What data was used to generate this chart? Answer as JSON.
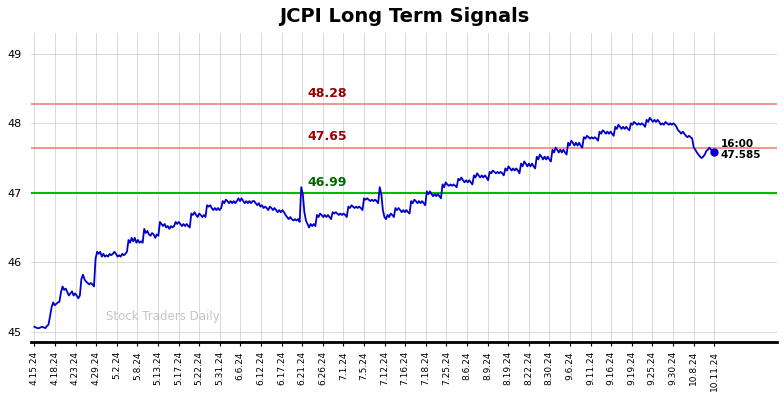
{
  "title": "JCPI Long Term Signals",
  "title_fontsize": 14,
  "background_color": "#ffffff",
  "grid_color": "#cccccc",
  "line_color": "#0000cc",
  "line_width": 1.3,
  "watermark": "Stock Traders Daily",
  "ylim": [
    44.85,
    49.3
  ],
  "yticks": [
    45,
    46,
    47,
    48,
    49
  ],
  "hlines": [
    {
      "y": 48.28,
      "color": "#f08080",
      "label": "48.28",
      "label_color": "#990000",
      "lw": 1.2
    },
    {
      "y": 47.65,
      "color": "#f08080",
      "label": "47.65",
      "label_color": "#990000",
      "lw": 1.2
    },
    {
      "y": 47.0,
      "color": "#00bb00",
      "label": "46.99",
      "label_color": "#006600",
      "lw": 1.5
    }
  ],
  "end_label": "16:00",
  "end_value": "47.585",
  "end_dot_color": "#0000cc",
  "xtick_labels": [
    "4.15.24",
    "4.18.24",
    "4.23.24",
    "4.29.24",
    "5.2.24",
    "5.8.24",
    "5.13.24",
    "5.17.24",
    "5.22.24",
    "5.31.24",
    "6.6.24",
    "6.12.24",
    "6.17.24",
    "6.21.24",
    "6.26.24",
    "7.1.24",
    "7.5.24",
    "7.12.24",
    "7.16.24",
    "7.18.24",
    "7.25.24",
    "8.6.24",
    "8.9.24",
    "8.19.24",
    "8.22.24",
    "8.30.24",
    "9.6.24",
    "9.11.24",
    "9.16.24",
    "9.19.24",
    "9.25.24",
    "9.30.24",
    "10.8.24",
    "10.11.24"
  ],
  "keypoints": [
    [
      0,
      45.07
    ],
    [
      1,
      45.06
    ],
    [
      2,
      45.05
    ],
    [
      3,
      45.05
    ],
    [
      4,
      45.06
    ],
    [
      5,
      45.07
    ],
    [
      6,
      45.06
    ],
    [
      7,
      45.05
    ],
    [
      8,
      45.08
    ],
    [
      9,
      45.1
    ],
    [
      10,
      45.22
    ],
    [
      11,
      45.35
    ],
    [
      12,
      45.42
    ],
    [
      13,
      45.38
    ],
    [
      14,
      45.4
    ],
    [
      15,
      45.42
    ],
    [
      16,
      45.43
    ],
    [
      17,
      45.57
    ],
    [
      18,
      45.65
    ],
    [
      19,
      45.6
    ],
    [
      20,
      45.62
    ],
    [
      21,
      45.57
    ],
    [
      22,
      45.52
    ],
    [
      23,
      45.55
    ],
    [
      24,
      45.58
    ],
    [
      25,
      45.52
    ],
    [
      26,
      45.55
    ],
    [
      27,
      45.52
    ],
    [
      28,
      45.48
    ],
    [
      29,
      45.52
    ],
    [
      30,
      45.76
    ],
    [
      31,
      45.82
    ],
    [
      32,
      45.75
    ],
    [
      33,
      45.72
    ],
    [
      34,
      45.7
    ],
    [
      35,
      45.68
    ],
    [
      36,
      45.7
    ],
    [
      37,
      45.68
    ],
    [
      38,
      45.65
    ],
    [
      39,
      46.05
    ],
    [
      40,
      46.15
    ],
    [
      41,
      46.12
    ],
    [
      42,
      46.15
    ],
    [
      43,
      46.08
    ],
    [
      44,
      46.12
    ],
    [
      45,
      46.08
    ],
    [
      46,
      46.1
    ],
    [
      47,
      46.08
    ],
    [
      48,
      46.12
    ],
    [
      49,
      46.1
    ],
    [
      50,
      46.12
    ],
    [
      51,
      46.15
    ],
    [
      52,
      46.12
    ],
    [
      53,
      46.08
    ],
    [
      54,
      46.1
    ],
    [
      55,
      46.08
    ],
    [
      56,
      46.12
    ],
    [
      57,
      46.1
    ],
    [
      58,
      46.12
    ],
    [
      59,
      46.15
    ],
    [
      60,
      46.32
    ],
    [
      61,
      46.28
    ],
    [
      62,
      46.35
    ],
    [
      63,
      46.3
    ],
    [
      64,
      46.35
    ],
    [
      65,
      46.28
    ],
    [
      66,
      46.32
    ],
    [
      67,
      46.28
    ],
    [
      68,
      46.3
    ],
    [
      69,
      46.28
    ],
    [
      70,
      46.48
    ],
    [
      71,
      46.42
    ],
    [
      72,
      46.45
    ],
    [
      73,
      46.4
    ],
    [
      74,
      46.38
    ],
    [
      75,
      46.42
    ],
    [
      76,
      46.4
    ],
    [
      77,
      46.35
    ],
    [
      78,
      46.4
    ],
    [
      79,
      46.38
    ],
    [
      80,
      46.58
    ],
    [
      81,
      46.55
    ],
    [
      82,
      46.52
    ],
    [
      83,
      46.55
    ],
    [
      84,
      46.5
    ],
    [
      85,
      46.52
    ],
    [
      86,
      46.48
    ],
    [
      87,
      46.52
    ],
    [
      88,
      46.5
    ],
    [
      89,
      46.52
    ],
    [
      90,
      46.58
    ],
    [
      91,
      46.55
    ],
    [
      92,
      46.58
    ],
    [
      93,
      46.55
    ],
    [
      94,
      46.52
    ],
    [
      95,
      46.55
    ],
    [
      96,
      46.52
    ],
    [
      97,
      46.55
    ],
    [
      98,
      46.52
    ],
    [
      99,
      46.5
    ],
    [
      100,
      46.7
    ],
    [
      101,
      46.68
    ],
    [
      102,
      46.72
    ],
    [
      103,
      46.68
    ],
    [
      104,
      46.65
    ],
    [
      105,
      46.7
    ],
    [
      106,
      46.68
    ],
    [
      107,
      46.65
    ],
    [
      108,
      46.68
    ],
    [
      109,
      46.65
    ],
    [
      110,
      46.82
    ],
    [
      111,
      46.8
    ],
    [
      112,
      46.82
    ],
    [
      113,
      46.78
    ],
    [
      114,
      46.75
    ],
    [
      115,
      46.78
    ],
    [
      116,
      46.75
    ],
    [
      117,
      46.78
    ],
    [
      118,
      46.75
    ],
    [
      119,
      46.78
    ],
    [
      120,
      46.88
    ],
    [
      121,
      46.85
    ],
    [
      122,
      46.9
    ],
    [
      123,
      46.88
    ],
    [
      124,
      46.85
    ],
    [
      125,
      46.88
    ],
    [
      126,
      46.85
    ],
    [
      127,
      46.88
    ],
    [
      128,
      46.85
    ],
    [
      129,
      46.88
    ],
    [
      130,
      46.92
    ],
    [
      131,
      46.88
    ],
    [
      132,
      46.92
    ],
    [
      133,
      46.88
    ],
    [
      134,
      46.85
    ],
    [
      135,
      46.88
    ],
    [
      136,
      46.85
    ],
    [
      137,
      46.88
    ],
    [
      138,
      46.85
    ],
    [
      139,
      46.88
    ],
    [
      140,
      46.88
    ],
    [
      141,
      46.85
    ],
    [
      142,
      46.82
    ],
    [
      143,
      46.85
    ],
    [
      144,
      46.8
    ],
    [
      145,
      46.82
    ],
    [
      146,
      46.78
    ],
    [
      147,
      46.8
    ],
    [
      148,
      46.78
    ],
    [
      149,
      46.75
    ],
    [
      150,
      46.8
    ],
    [
      151,
      46.78
    ],
    [
      152,
      46.75
    ],
    [
      153,
      46.78
    ],
    [
      154,
      46.75
    ],
    [
      155,
      46.72
    ],
    [
      156,
      46.75
    ],
    [
      157,
      46.72
    ],
    [
      158,
      46.75
    ],
    [
      159,
      46.72
    ],
    [
      160,
      46.68
    ],
    [
      161,
      46.65
    ],
    [
      162,
      46.62
    ],
    [
      163,
      46.65
    ],
    [
      164,
      46.62
    ],
    [
      165,
      46.6
    ],
    [
      166,
      46.62
    ],
    [
      167,
      46.6
    ],
    [
      168,
      46.62
    ],
    [
      169,
      46.58
    ],
    [
      170,
      47.08
    ],
    [
      171,
      46.98
    ],
    [
      172,
      46.72
    ],
    [
      173,
      46.6
    ],
    [
      174,
      46.55
    ],
    [
      175,
      46.5
    ],
    [
      176,
      46.55
    ],
    [
      177,
      46.52
    ],
    [
      178,
      46.55
    ],
    [
      179,
      46.52
    ],
    [
      180,
      46.68
    ],
    [
      181,
      46.65
    ],
    [
      182,
      46.7
    ],
    [
      183,
      46.68
    ],
    [
      184,
      46.65
    ],
    [
      185,
      46.68
    ],
    [
      186,
      46.65
    ],
    [
      187,
      46.68
    ],
    [
      188,
      46.65
    ],
    [
      189,
      46.62
    ],
    [
      190,
      46.72
    ],
    [
      191,
      46.7
    ],
    [
      192,
      46.72
    ],
    [
      193,
      46.7
    ],
    [
      194,
      46.68
    ],
    [
      195,
      46.7
    ],
    [
      196,
      46.68
    ],
    [
      197,
      46.7
    ],
    [
      198,
      46.68
    ],
    [
      199,
      46.65
    ],
    [
      200,
      46.8
    ],
    [
      201,
      46.78
    ],
    [
      202,
      46.82
    ],
    [
      203,
      46.8
    ],
    [
      204,
      46.78
    ],
    [
      205,
      46.8
    ],
    [
      206,
      46.78
    ],
    [
      207,
      46.8
    ],
    [
      208,
      46.78
    ],
    [
      209,
      46.75
    ],
    [
      210,
      46.92
    ],
    [
      211,
      46.9
    ],
    [
      212,
      46.92
    ],
    [
      213,
      46.9
    ],
    [
      214,
      46.88
    ],
    [
      215,
      46.9
    ],
    [
      216,
      46.88
    ],
    [
      217,
      46.9
    ],
    [
      218,
      46.88
    ],
    [
      219,
      46.85
    ],
    [
      220,
      47.08
    ],
    [
      221,
      46.98
    ],
    [
      222,
      46.75
    ],
    [
      223,
      46.65
    ],
    [
      224,
      46.62
    ],
    [
      225,
      46.68
    ],
    [
      226,
      46.65
    ],
    [
      227,
      46.7
    ],
    [
      228,
      46.68
    ],
    [
      229,
      46.65
    ],
    [
      230,
      46.78
    ],
    [
      231,
      46.75
    ],
    [
      232,
      46.78
    ],
    [
      233,
      46.75
    ],
    [
      234,
      46.72
    ],
    [
      235,
      46.75
    ],
    [
      236,
      46.72
    ],
    [
      237,
      46.75
    ],
    [
      238,
      46.72
    ],
    [
      239,
      46.7
    ],
    [
      240,
      46.88
    ],
    [
      241,
      46.85
    ],
    [
      242,
      46.9
    ],
    [
      243,
      46.88
    ],
    [
      244,
      46.85
    ],
    [
      245,
      46.88
    ],
    [
      246,
      46.85
    ],
    [
      247,
      46.88
    ],
    [
      248,
      46.85
    ],
    [
      249,
      46.82
    ],
    [
      250,
      47.02
    ],
    [
      251,
      46.98
    ],
    [
      252,
      47.02
    ],
    [
      253,
      46.98
    ],
    [
      254,
      46.95
    ],
    [
      255,
      46.98
    ],
    [
      256,
      46.95
    ],
    [
      257,
      46.98
    ],
    [
      258,
      46.95
    ],
    [
      259,
      46.92
    ],
    [
      260,
      47.12
    ],
    [
      261,
      47.08
    ],
    [
      262,
      47.15
    ],
    [
      263,
      47.12
    ],
    [
      264,
      47.1
    ],
    [
      265,
      47.12
    ],
    [
      266,
      47.1
    ],
    [
      267,
      47.12
    ],
    [
      268,
      47.1
    ],
    [
      269,
      47.08
    ],
    [
      270,
      47.2
    ],
    [
      271,
      47.18
    ],
    [
      272,
      47.22
    ],
    [
      273,
      47.18
    ],
    [
      274,
      47.15
    ],
    [
      275,
      47.18
    ],
    [
      276,
      47.15
    ],
    [
      277,
      47.18
    ],
    [
      278,
      47.15
    ],
    [
      279,
      47.12
    ],
    [
      280,
      47.25
    ],
    [
      281,
      47.22
    ],
    [
      282,
      47.28
    ],
    [
      283,
      47.25
    ],
    [
      284,
      47.22
    ],
    [
      285,
      47.25
    ],
    [
      286,
      47.22
    ],
    [
      287,
      47.25
    ],
    [
      288,
      47.22
    ],
    [
      289,
      47.18
    ],
    [
      290,
      47.3
    ],
    [
      291,
      47.28
    ],
    [
      292,
      47.32
    ],
    [
      293,
      47.3
    ],
    [
      294,
      47.28
    ],
    [
      295,
      47.3
    ],
    [
      296,
      47.28
    ],
    [
      297,
      47.3
    ],
    [
      298,
      47.28
    ],
    [
      299,
      47.25
    ],
    [
      300,
      47.35
    ],
    [
      301,
      47.32
    ],
    [
      302,
      47.38
    ],
    [
      303,
      47.35
    ],
    [
      304,
      47.32
    ],
    [
      305,
      47.35
    ],
    [
      306,
      47.32
    ],
    [
      307,
      47.35
    ],
    [
      308,
      47.32
    ],
    [
      309,
      47.28
    ],
    [
      310,
      47.42
    ],
    [
      311,
      47.38
    ],
    [
      312,
      47.45
    ],
    [
      313,
      47.42
    ],
    [
      314,
      47.38
    ],
    [
      315,
      47.42
    ],
    [
      316,
      47.38
    ],
    [
      317,
      47.42
    ],
    [
      318,
      47.38
    ],
    [
      319,
      47.35
    ],
    [
      320,
      47.52
    ],
    [
      321,
      47.48
    ],
    [
      322,
      47.55
    ],
    [
      323,
      47.52
    ],
    [
      324,
      47.48
    ],
    [
      325,
      47.52
    ],
    [
      326,
      47.48
    ],
    [
      327,
      47.52
    ],
    [
      328,
      47.48
    ],
    [
      329,
      47.45
    ],
    [
      330,
      47.62
    ],
    [
      331,
      47.58
    ],
    [
      332,
      47.65
    ],
    [
      333,
      47.62
    ],
    [
      334,
      47.58
    ],
    [
      335,
      47.62
    ],
    [
      336,
      47.58
    ],
    [
      337,
      47.62
    ],
    [
      338,
      47.58
    ],
    [
      339,
      47.55
    ],
    [
      340,
      47.72
    ],
    [
      341,
      47.68
    ],
    [
      342,
      47.75
    ],
    [
      343,
      47.72
    ],
    [
      344,
      47.68
    ],
    [
      345,
      47.72
    ],
    [
      346,
      47.68
    ],
    [
      347,
      47.72
    ],
    [
      348,
      47.68
    ],
    [
      349,
      47.65
    ],
    [
      350,
      47.8
    ],
    [
      351,
      47.78
    ],
    [
      352,
      47.82
    ],
    [
      353,
      47.8
    ],
    [
      354,
      47.78
    ],
    [
      355,
      47.8
    ],
    [
      356,
      47.78
    ],
    [
      357,
      47.8
    ],
    [
      358,
      47.78
    ],
    [
      359,
      47.75
    ],
    [
      360,
      47.88
    ],
    [
      361,
      47.85
    ],
    [
      362,
      47.9
    ],
    [
      363,
      47.88
    ],
    [
      364,
      47.85
    ],
    [
      365,
      47.88
    ],
    [
      366,
      47.85
    ],
    [
      367,
      47.88
    ],
    [
      368,
      47.85
    ],
    [
      369,
      47.82
    ],
    [
      370,
      47.95
    ],
    [
      371,
      47.92
    ],
    [
      372,
      47.98
    ],
    [
      373,
      47.95
    ],
    [
      374,
      47.92
    ],
    [
      375,
      47.95
    ],
    [
      376,
      47.92
    ],
    [
      377,
      47.95
    ],
    [
      378,
      47.92
    ],
    [
      379,
      47.9
    ],
    [
      380,
      48.0
    ],
    [
      381,
      47.98
    ],
    [
      382,
      48.02
    ],
    [
      383,
      48.0
    ],
    [
      384,
      47.98
    ],
    [
      385,
      48.0
    ],
    [
      386,
      47.98
    ],
    [
      387,
      48.0
    ],
    [
      388,
      47.98
    ],
    [
      389,
      47.95
    ],
    [
      390,
      48.05
    ],
    [
      391,
      48.02
    ],
    [
      392,
      48.08
    ],
    [
      393,
      48.05
    ],
    [
      394,
      48.02
    ],
    [
      395,
      48.05
    ],
    [
      396,
      48.02
    ],
    [
      397,
      48.05
    ],
    [
      398,
      48.02
    ],
    [
      399,
      47.98
    ],
    [
      400,
      48.0
    ],
    [
      401,
      47.98
    ],
    [
      402,
      48.02
    ],
    [
      403,
      48.0
    ],
    [
      404,
      47.98
    ],
    [
      405,
      48.0
    ],
    [
      406,
      47.98
    ],
    [
      407,
      48.0
    ],
    [
      408,
      47.98
    ],
    [
      409,
      47.95
    ],
    [
      410,
      47.9
    ],
    [
      411,
      47.88
    ],
    [
      412,
      47.85
    ],
    [
      413,
      47.88
    ],
    [
      414,
      47.85
    ],
    [
      415,
      47.82
    ],
    [
      416,
      47.8
    ],
    [
      417,
      47.82
    ],
    [
      418,
      47.8
    ],
    [
      419,
      47.78
    ],
    [
      420,
      47.65
    ],
    [
      421,
      47.62
    ],
    [
      422,
      47.58
    ],
    [
      423,
      47.55
    ],
    [
      424,
      47.52
    ],
    [
      425,
      47.5
    ],
    [
      426,
      47.52
    ],
    [
      427,
      47.55
    ],
    [
      428,
      47.6
    ],
    [
      429,
      47.62
    ],
    [
      430,
      47.65
    ],
    [
      431,
      47.62
    ],
    [
      432,
      47.6
    ],
    [
      433,
      47.585
    ]
  ]
}
